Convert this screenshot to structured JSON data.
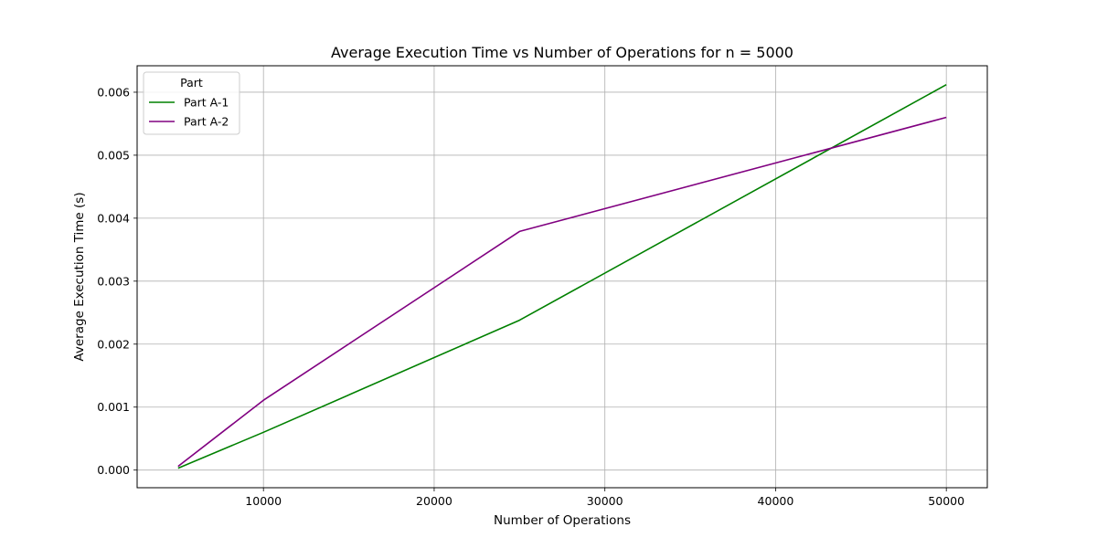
{
  "chart_data": {
    "type": "line",
    "title": "Average Execution Time vs Number of Operations for n = 5000",
    "xlabel": "Number of Operations",
    "ylabel": "Average Execution Time (s)",
    "xlim": [
      2600,
      52400
    ],
    "ylim": [
      -0.00028,
      0.00642
    ],
    "xticks": [
      10000,
      20000,
      30000,
      40000,
      50000
    ],
    "yticks": [
      0.0,
      0.001,
      0.002,
      0.003,
      0.004,
      0.005,
      0.006
    ],
    "ytick_format": "0.000",
    "grid": true,
    "legend": {
      "title": "Part",
      "position": "top-left"
    },
    "x": [
      5000,
      10000,
      25000,
      50000
    ],
    "series": [
      {
        "name": "Part A-1",
        "color": "#008000",
        "values": [
          3e-05,
          0.0006,
          0.00238,
          0.00612
        ]
      },
      {
        "name": "Part A-2",
        "color": "#800080",
        "values": [
          6e-05,
          0.00111,
          0.00379,
          0.0056
        ]
      }
    ]
  }
}
